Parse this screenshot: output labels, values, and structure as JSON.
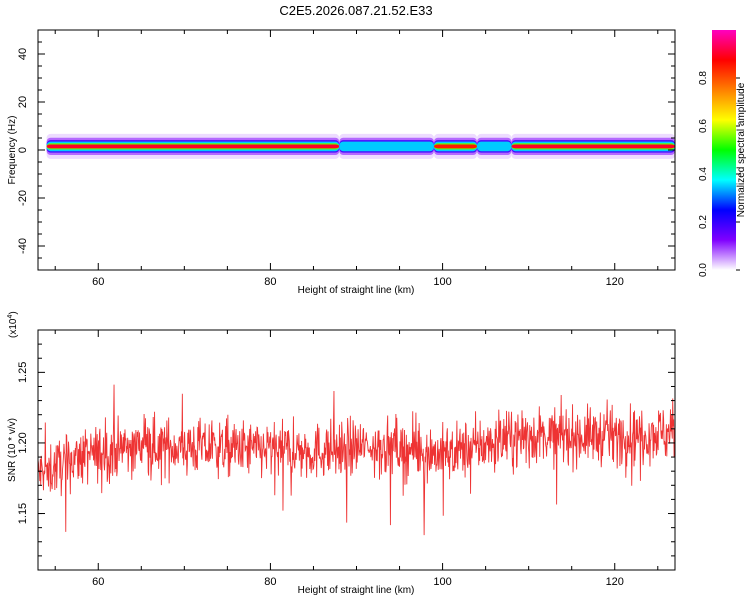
{
  "title": "C2E5.2026.087.21.52.E33",
  "chart_data": [
    {
      "type": "heatmap",
      "name": "spectrogram",
      "xlabel": "Height of straight line (km)",
      "ylabel": "Frequency (Hz)",
      "xlim": [
        53,
        127
      ],
      "ylim": [
        -50,
        50
      ],
      "xticks": [
        60,
        80,
        100,
        120
      ],
      "yticks": [
        -40,
        -20,
        0,
        20,
        40
      ],
      "band_center_hz": 1.5,
      "band_halfwidth_hz": 2,
      "colorbar": {
        "label": "Normalized spectral amplitude",
        "range": [
          0,
          1
        ],
        "ticks": [
          0.0,
          0.2,
          0.4,
          0.6,
          0.8
        ],
        "colors": [
          "#ffffff",
          "#8000ff",
          "#0000ff",
          "#00ffff",
          "#00ff00",
          "#ffff00",
          "#ff8000",
          "#ff0000",
          "#ff00c0"
        ]
      },
      "segments": [
        {
          "x0": 54,
          "x1": 88,
          "level": 0.9
        },
        {
          "x0": 88,
          "x1": 99,
          "level": 0.35
        },
        {
          "x0": 99,
          "x1": 104,
          "level": 0.85
        },
        {
          "x0": 104,
          "x1": 108,
          "level": 0.35
        },
        {
          "x0": 108,
          "x1": 127,
          "level": 0.9
        }
      ]
    },
    {
      "type": "line",
      "name": "snr",
      "xlabel": "Height of straight line (km)",
      "ylabel": "SNR (10 * v/v)",
      "multiplier_label": "(x10",
      "multiplier_exp": "4",
      "xlim": [
        53,
        127
      ],
      "ylim": [
        1.11,
        1.28
      ],
      "xticks": [
        60,
        80,
        100,
        120
      ],
      "yticks": [
        "1.15",
        "1.20",
        "1.25"
      ],
      "series_color": "#ee3333",
      "trend": {
        "x": [
          53,
          58,
          65,
          75,
          85,
          92,
          100,
          110,
          120,
          127
        ],
        "y": [
          1.178,
          1.19,
          1.198,
          1.196,
          1.194,
          1.198,
          1.192,
          1.205,
          1.205,
          1.208
        ]
      },
      "noise_amplitude": 0.018,
      "sample_count": 1400
    }
  ]
}
